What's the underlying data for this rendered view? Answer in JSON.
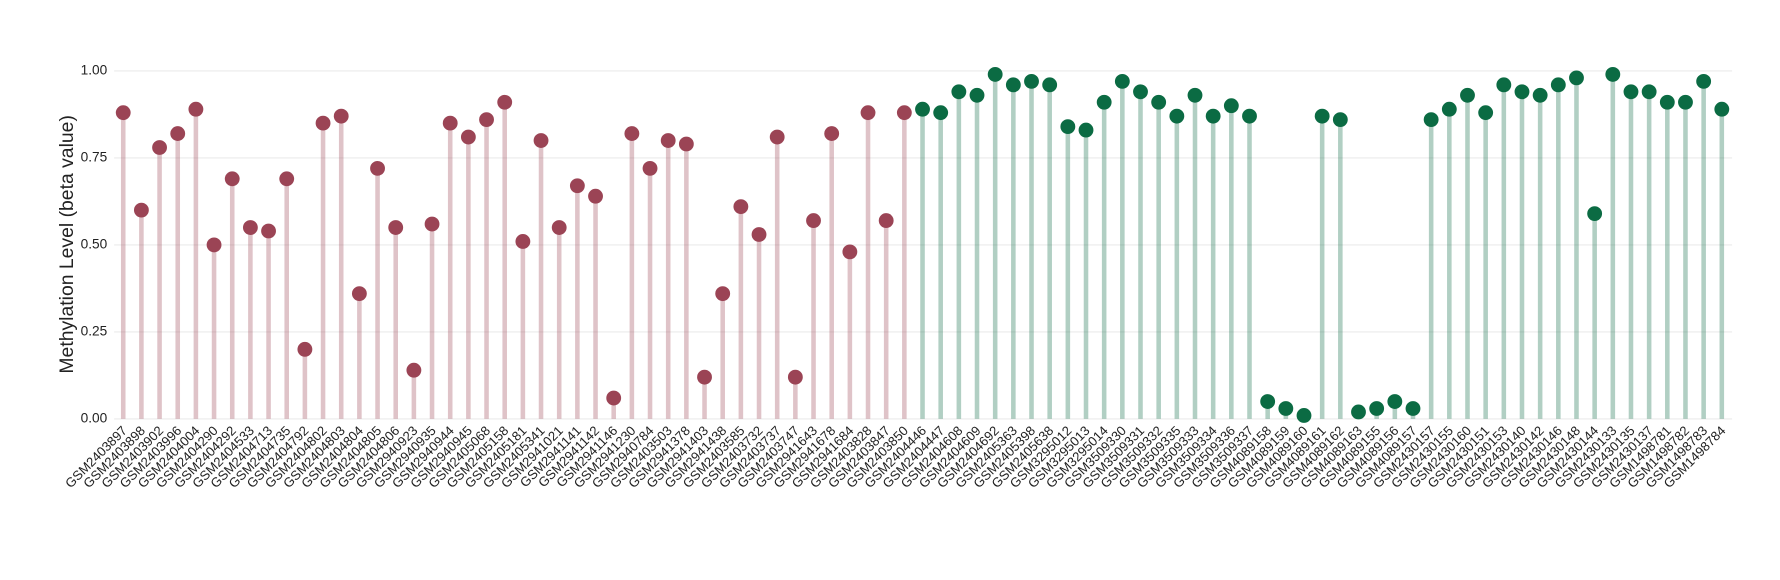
{
  "chart_data": {
    "type": "lollipop",
    "y_label": "Methylation Level (beta value)",
    "categories": [
      "GSM2403897",
      "GSM2403898",
      "GSM2403902",
      "GSM2403996",
      "GSM2404004",
      "GSM2404290",
      "GSM2404292",
      "GSM2404533",
      "GSM2404713",
      "GSM2404735",
      "GSM2404792",
      "GSM2404802",
      "GSM2404803",
      "GSM2404804",
      "GSM2404805",
      "GSM2404806",
      "GSM2940923",
      "GSM2940935",
      "GSM2940944",
      "GSM2940945",
      "GSM2405068",
      "GSM2405158",
      "GSM2405181",
      "GSM2405341",
      "GSM2941021",
      "GSM2941141",
      "GSM2941142",
      "GSM2941146",
      "GSM2941230",
      "GSM2940784",
      "GSM2403503",
      "GSM2941378",
      "GSM2941403",
      "GSM2941438",
      "GSM2403585",
      "GSM2403732",
      "GSM2403737",
      "GSM2403747",
      "GSM2941643",
      "GSM2941678",
      "GSM2941684",
      "GSM2403828",
      "GSM2403847",
      "GSM2403850",
      "GSM2404446",
      "GSM2404447",
      "GSM2404608",
      "GSM2404609",
      "GSM2404692",
      "GSM2405363",
      "GSM2405398",
      "GSM2405638",
      "GSM3295012",
      "GSM3295013",
      "GSM3295014",
      "GSM3509330",
      "GSM3509331",
      "GSM3509332",
      "GSM3509335",
      "GSM3509333",
      "GSM3509334",
      "GSM3509336",
      "GSM3509337",
      "GSM4089158",
      "GSM4089159",
      "GSM4089160",
      "GSM4089161",
      "GSM4089162",
      "GSM4089163",
      "GSM4089155",
      "GSM4089156",
      "GSM4089157",
      "GSM2430157",
      "GSM2430155",
      "GSM2430160",
      "GSM2430151",
      "GSM2430153",
      "GSM2430140",
      "GSM2430142",
      "GSM2430146",
      "GSM2430148",
      "GSM2430144",
      "GSM2430133",
      "GSM2430135",
      "GSM2430137",
      "GSM1498781",
      "GSM1498782",
      "GSM1498783",
      "GSM1498784"
    ],
    "series": [
      {
        "color": "#9b4455",
        "values": [
          0.88,
          0.6,
          0.78,
          0.82,
          0.89,
          0.5,
          0.69,
          0.55,
          0.54,
          0.69,
          0.2,
          0.85,
          0.87,
          0.36,
          0.72,
          0.55,
          0.14,
          0.56,
          0.85,
          0.81,
          0.86,
          0.91,
          0.51,
          0.8,
          0.55,
          0.67,
          0.64,
          0.06,
          0.82,
          0.72,
          0.8,
          0.79,
          0.12,
          0.36,
          0.61,
          0.53,
          0.81,
          0.12,
          0.57,
          0.82,
          0.48,
          0.88,
          0.57,
          0.88,
          null,
          null,
          null,
          null,
          null,
          null,
          null,
          null,
          null,
          null,
          null,
          null,
          null,
          null,
          null,
          null,
          null,
          null,
          null,
          null,
          null,
          null,
          null,
          null,
          null,
          null,
          null,
          null,
          null,
          null,
          null,
          null,
          null,
          null,
          null,
          null,
          null,
          null,
          null,
          null,
          null,
          null,
          null,
          null,
          null
        ]
      },
      {
        "color": "#0b6b43",
        "values": [
          null,
          null,
          null,
          null,
          null,
          null,
          null,
          null,
          null,
          null,
          null,
          null,
          null,
          null,
          null,
          null,
          null,
          null,
          null,
          null,
          null,
          null,
          null,
          null,
          null,
          null,
          null,
          null,
          null,
          null,
          null,
          null,
          null,
          null,
          null,
          null,
          null,
          null,
          null,
          null,
          null,
          null,
          null,
          null,
          0.89,
          0.88,
          0.94,
          0.93,
          0.99,
          0.96,
          0.97,
          0.96,
          0.84,
          0.83,
          0.91,
          0.97,
          0.94,
          0.91,
          0.87,
          0.93,
          0.87,
          0.9,
          0.87,
          0.05,
          0.03,
          0.01,
          0.87,
          0.86,
          0.02,
          0.03,
          0.05,
          0.03,
          0.86,
          0.89,
          0.93,
          0.88,
          0.96,
          0.94,
          0.93,
          0.96,
          0.98,
          0.59,
          0.99,
          0.94,
          0.94,
          0.91,
          0.91,
          0.97,
          0.89
        ]
      }
    ],
    "ylim": [
      0,
      1
    ],
    "yticks": [
      {
        "value": 0,
        "label": "0.00"
      },
      {
        "value": 0.25,
        "label": "0.25"
      },
      {
        "value": 0.5,
        "label": "0.50"
      },
      {
        "value": 0.75,
        "label": "0.75"
      },
      {
        "value": 1,
        "label": "1.00"
      }
    ],
    "grid": true
  }
}
